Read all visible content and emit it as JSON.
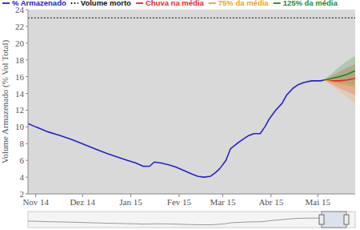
{
  "chart_data": {
    "type": "line",
    "y_label": "Volume Armazenado (% Vol Total)",
    "xlim": [
      -5,
      205
    ],
    "xticks": [
      {
        "value": 0,
        "label": "Nov 14"
      },
      {
        "value": 30,
        "label": "Dez 14"
      },
      {
        "value": 61,
        "label": "Jan 15"
      },
      {
        "value": 92,
        "label": "Fev 15"
      },
      {
        "value": 120,
        "label": "Mar 15"
      },
      {
        "value": 151,
        "label": "Abr 15"
      },
      {
        "value": 181,
        "label": "Mai 15"
      }
    ],
    "ylim": [
      2,
      24
    ],
    "yticks": [
      2,
      4,
      6,
      8,
      10,
      12,
      14,
      16,
      18,
      20,
      22,
      24
    ],
    "grid": false,
    "legend": "top",
    "series": [
      {
        "name": "% Armazenado",
        "color": "#2323c8",
        "line_style": "solid",
        "x": [
          -5,
          0,
          8,
          15,
          23,
          31,
          39,
          46,
          54,
          59,
          64,
          69,
          73,
          76,
          80,
          85,
          90,
          95,
          100,
          104,
          108,
          112,
          115,
          118,
          122,
          125,
          129,
          132,
          136,
          140,
          144,
          147,
          150,
          154,
          158,
          161,
          165,
          168,
          172,
          177,
          183,
          185
        ],
        "values": [
          10.4,
          10.0,
          9.4,
          9.0,
          8.5,
          7.9,
          7.3,
          6.8,
          6.3,
          6.0,
          5.7,
          5.3,
          5.3,
          5.8,
          5.7,
          5.5,
          5.2,
          4.8,
          4.4,
          4.1,
          4.0,
          4.1,
          4.5,
          5.0,
          6.0,
          7.4,
          8.0,
          8.4,
          8.9,
          9.2,
          9.2,
          10.0,
          11.0,
          12.0,
          12.8,
          13.8,
          14.6,
          15.0,
          15.3,
          15.5,
          15.5,
          15.6
        ]
      },
      {
        "name": "Volume morto",
        "color": "#000000",
        "line_style": "dotted",
        "x": [
          -5,
          205
        ],
        "values": [
          23,
          23
        ]
      },
      {
        "name": "Chuva na média",
        "color": "#e8262a",
        "line_style": "solid",
        "x": [
          185,
          190,
          195,
          200,
          205
        ],
        "values": [
          15.6,
          15.5,
          15.5,
          15.6,
          15.8
        ],
        "low": [
          15.6,
          15.1,
          14.6,
          14.2,
          13.8
        ],
        "high": [
          15.6,
          16.1,
          16.6,
          17.1,
          17.5
        ]
      },
      {
        "name": "75% da média",
        "color": "#f0a030",
        "line_style": "solid",
        "x": [
          185,
          190,
          195,
          200,
          205
        ],
        "values": [
          15.6,
          15.4,
          15.2,
          15.0,
          14.8
        ],
        "low": [
          15.6,
          14.9,
          14.2,
          13.5,
          12.8
        ],
        "high": [
          15.6,
          15.9,
          16.1,
          16.3,
          16.5
        ]
      },
      {
        "name": "125% da média",
        "color": "#1f8a1f",
        "line_style": "solid",
        "x": [
          185,
          190,
          195,
          200,
          205
        ],
        "values": [
          15.6,
          15.8,
          16.0,
          16.3,
          16.7
        ],
        "low": [
          15.6,
          15.5,
          15.3,
          15.1,
          15.0
        ],
        "high": [
          15.6,
          16.4,
          17.2,
          17.9,
          18.5
        ]
      }
    ]
  }
}
